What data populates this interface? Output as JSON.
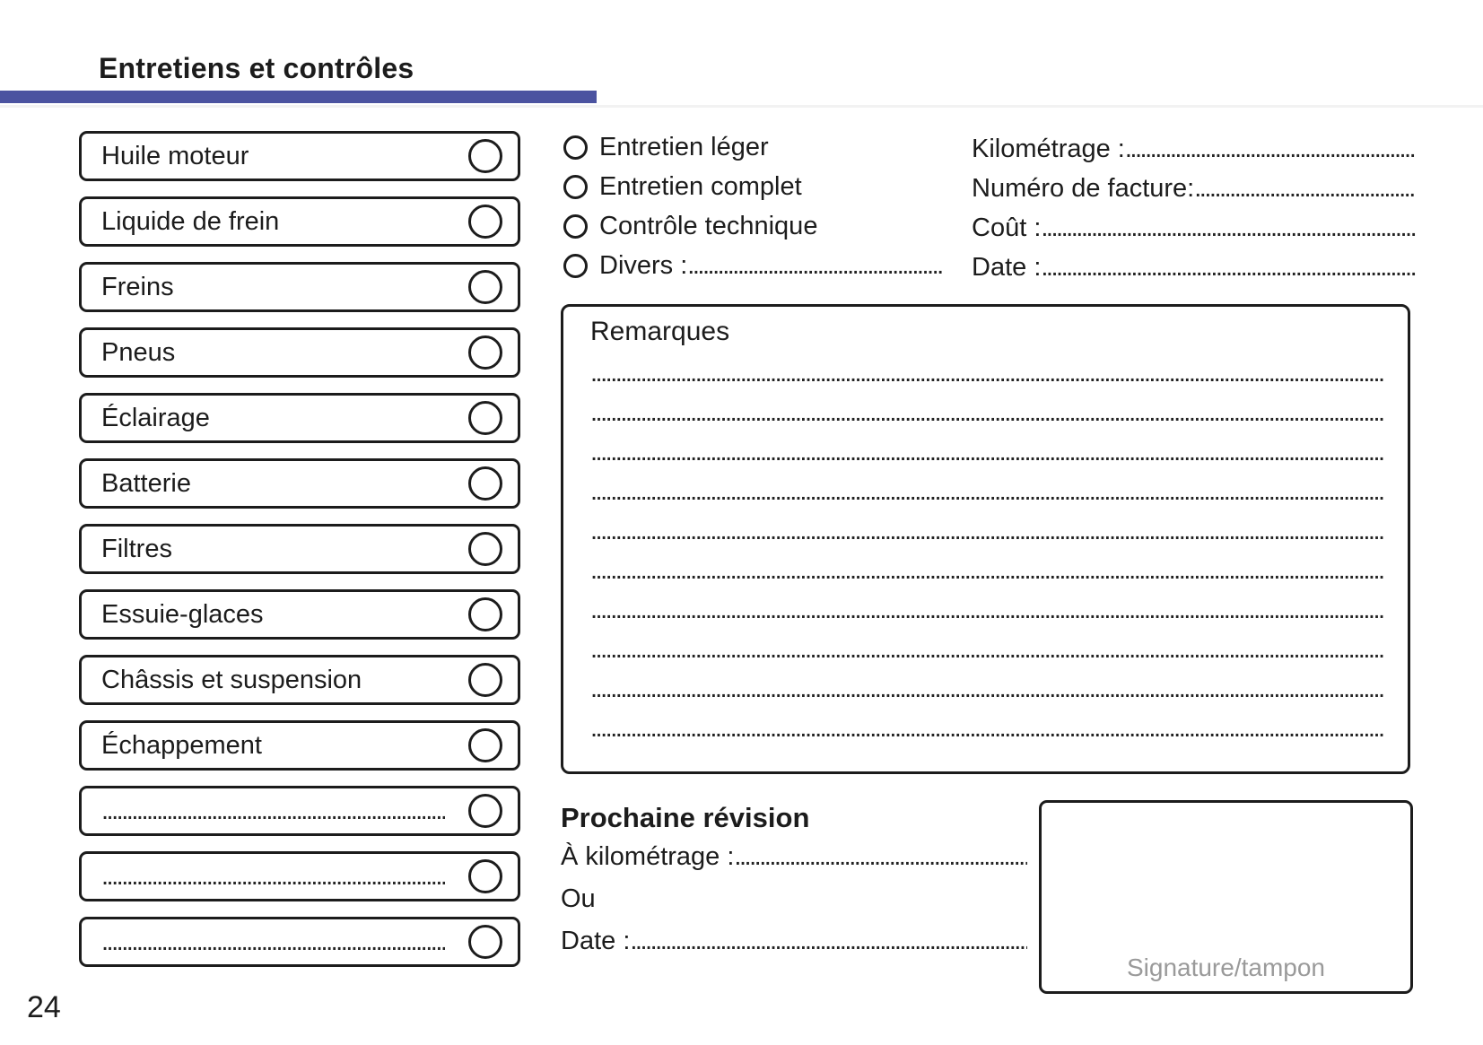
{
  "page": {
    "title": "Entretiens et contrôles",
    "page_number": "24",
    "accent_color": "#4B53A0"
  },
  "checklist": {
    "items": [
      "Huile moteur",
      "Liquide de frein",
      "Freins",
      "Pneus",
      "Éclairage",
      "Batterie",
      "Filtres",
      "Essuie-glaces",
      "Châssis et suspension",
      "Échappement"
    ],
    "blank_item_count": 3
  },
  "service_type": {
    "options": [
      "Entretien léger",
      "Entretien complet",
      "Contrôle technique"
    ],
    "divers_label": "Divers :"
  },
  "record_fields": [
    "Kilométrage :",
    "Numéro de facture:",
    "Coût :",
    "Date :"
  ],
  "remarks": {
    "title": "Remarques",
    "line_count": 10
  },
  "next_service": {
    "title": "Prochaine révision",
    "km_label": "À kilométrage :",
    "or_label": "Ou",
    "date_label": "Date :"
  },
  "signature": {
    "label": "Signature/tampon"
  },
  "dots_fill": "................................................................................................................................................................................................................................................"
}
